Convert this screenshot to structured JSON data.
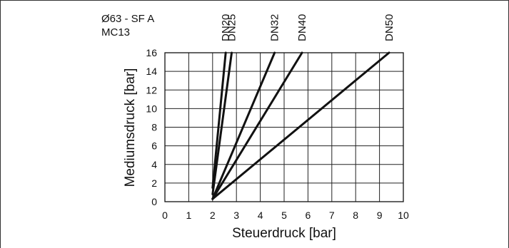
{
  "chart_data": {
    "type": "line",
    "title": "",
    "annotations": [
      "Ø63 - SF A",
      "MC13"
    ],
    "xlabel": "Steuerdruck [bar]",
    "ylabel": "Mediumsdruck [bar]",
    "xlim": [
      0,
      10
    ],
    "ylim": [
      0,
      16
    ],
    "xticks": [
      0,
      1,
      2,
      3,
      4,
      5,
      6,
      7,
      8,
      9,
      10
    ],
    "yticks": [
      0,
      2,
      4,
      6,
      8,
      10,
      12,
      14,
      16
    ],
    "grid": true,
    "legend": "top (series labels rotated above plot)",
    "line_color": "#111111",
    "series": [
      {
        "name": "DN20",
        "x": [
          2.0,
          2.55
        ],
        "y": [
          1.5,
          16
        ]
      },
      {
        "name": "DN25",
        "x": [
          2.0,
          2.8
        ],
        "y": [
          0.8,
          16
        ]
      },
      {
        "name": "DN32",
        "x": [
          2.0,
          4.6
        ],
        "y": [
          0.3,
          16
        ]
      },
      {
        "name": "DN40",
        "x": [
          2.0,
          5.75
        ],
        "y": [
          0.3,
          16
        ]
      },
      {
        "name": "DN50",
        "x": [
          2.0,
          9.4
        ],
        "y": [
          0.3,
          16
        ]
      }
    ]
  }
}
